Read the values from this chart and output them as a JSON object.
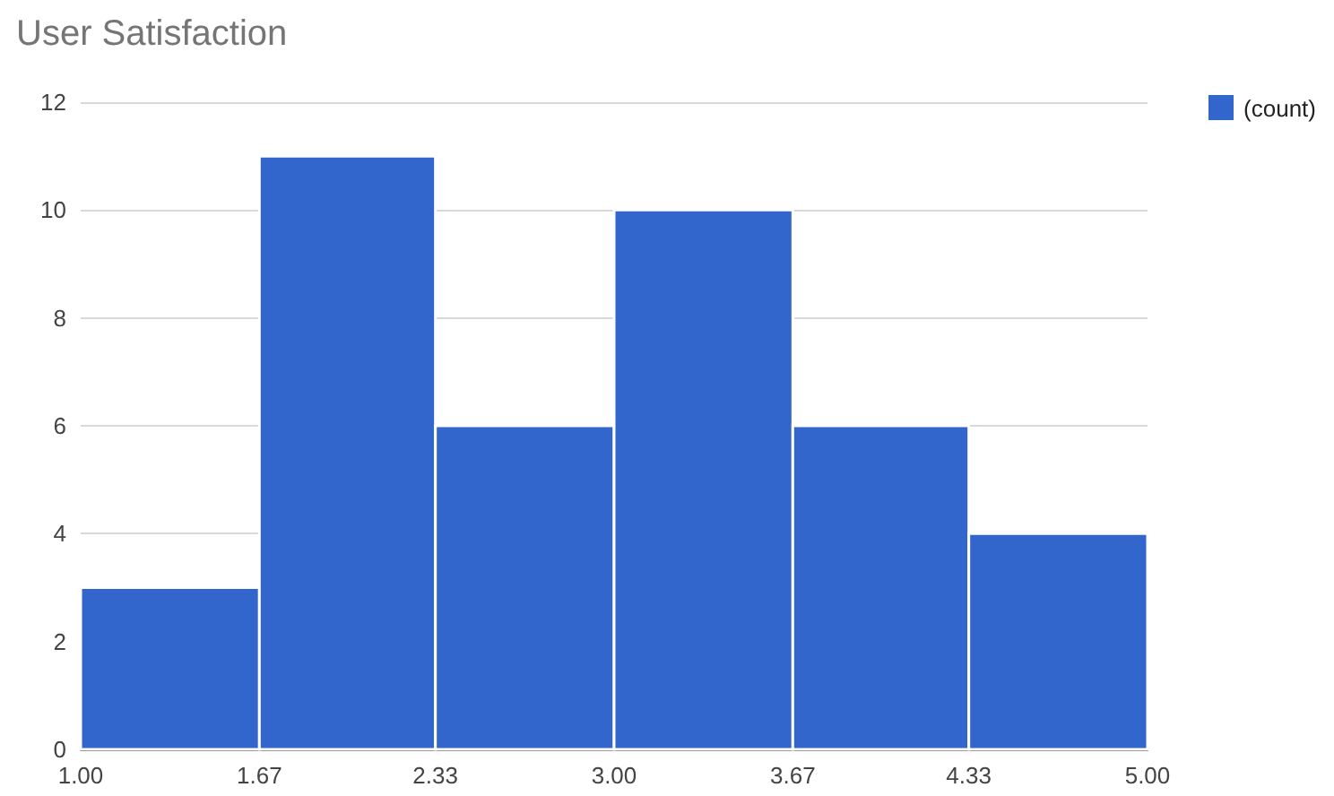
{
  "chart_data": {
    "type": "histogram",
    "title": "User Satisfaction",
    "bins": [
      1,
      1.67,
      2.33,
      3,
      3.67,
      4.33,
      5
    ],
    "series": [
      {
        "name": "(count)",
        "color": "#3366cc",
        "values": [
          3,
          11,
          6,
          10,
          6,
          4
        ]
      }
    ],
    "xlim": [
      1,
      5
    ],
    "xticks": [
      {
        "value": 1,
        "label": "1.00"
      },
      1.67,
      2.33,
      {
        "value": 3,
        "label": "3.00"
      },
      3.67,
      4.33,
      {
        "value": 5,
        "label": "5.00"
      }
    ],
    "ylim": [
      0,
      12
    ],
    "yticks": [
      0,
      2,
      4,
      6,
      8,
      10,
      12
    ],
    "grid": "y",
    "legend": "top right"
  }
}
